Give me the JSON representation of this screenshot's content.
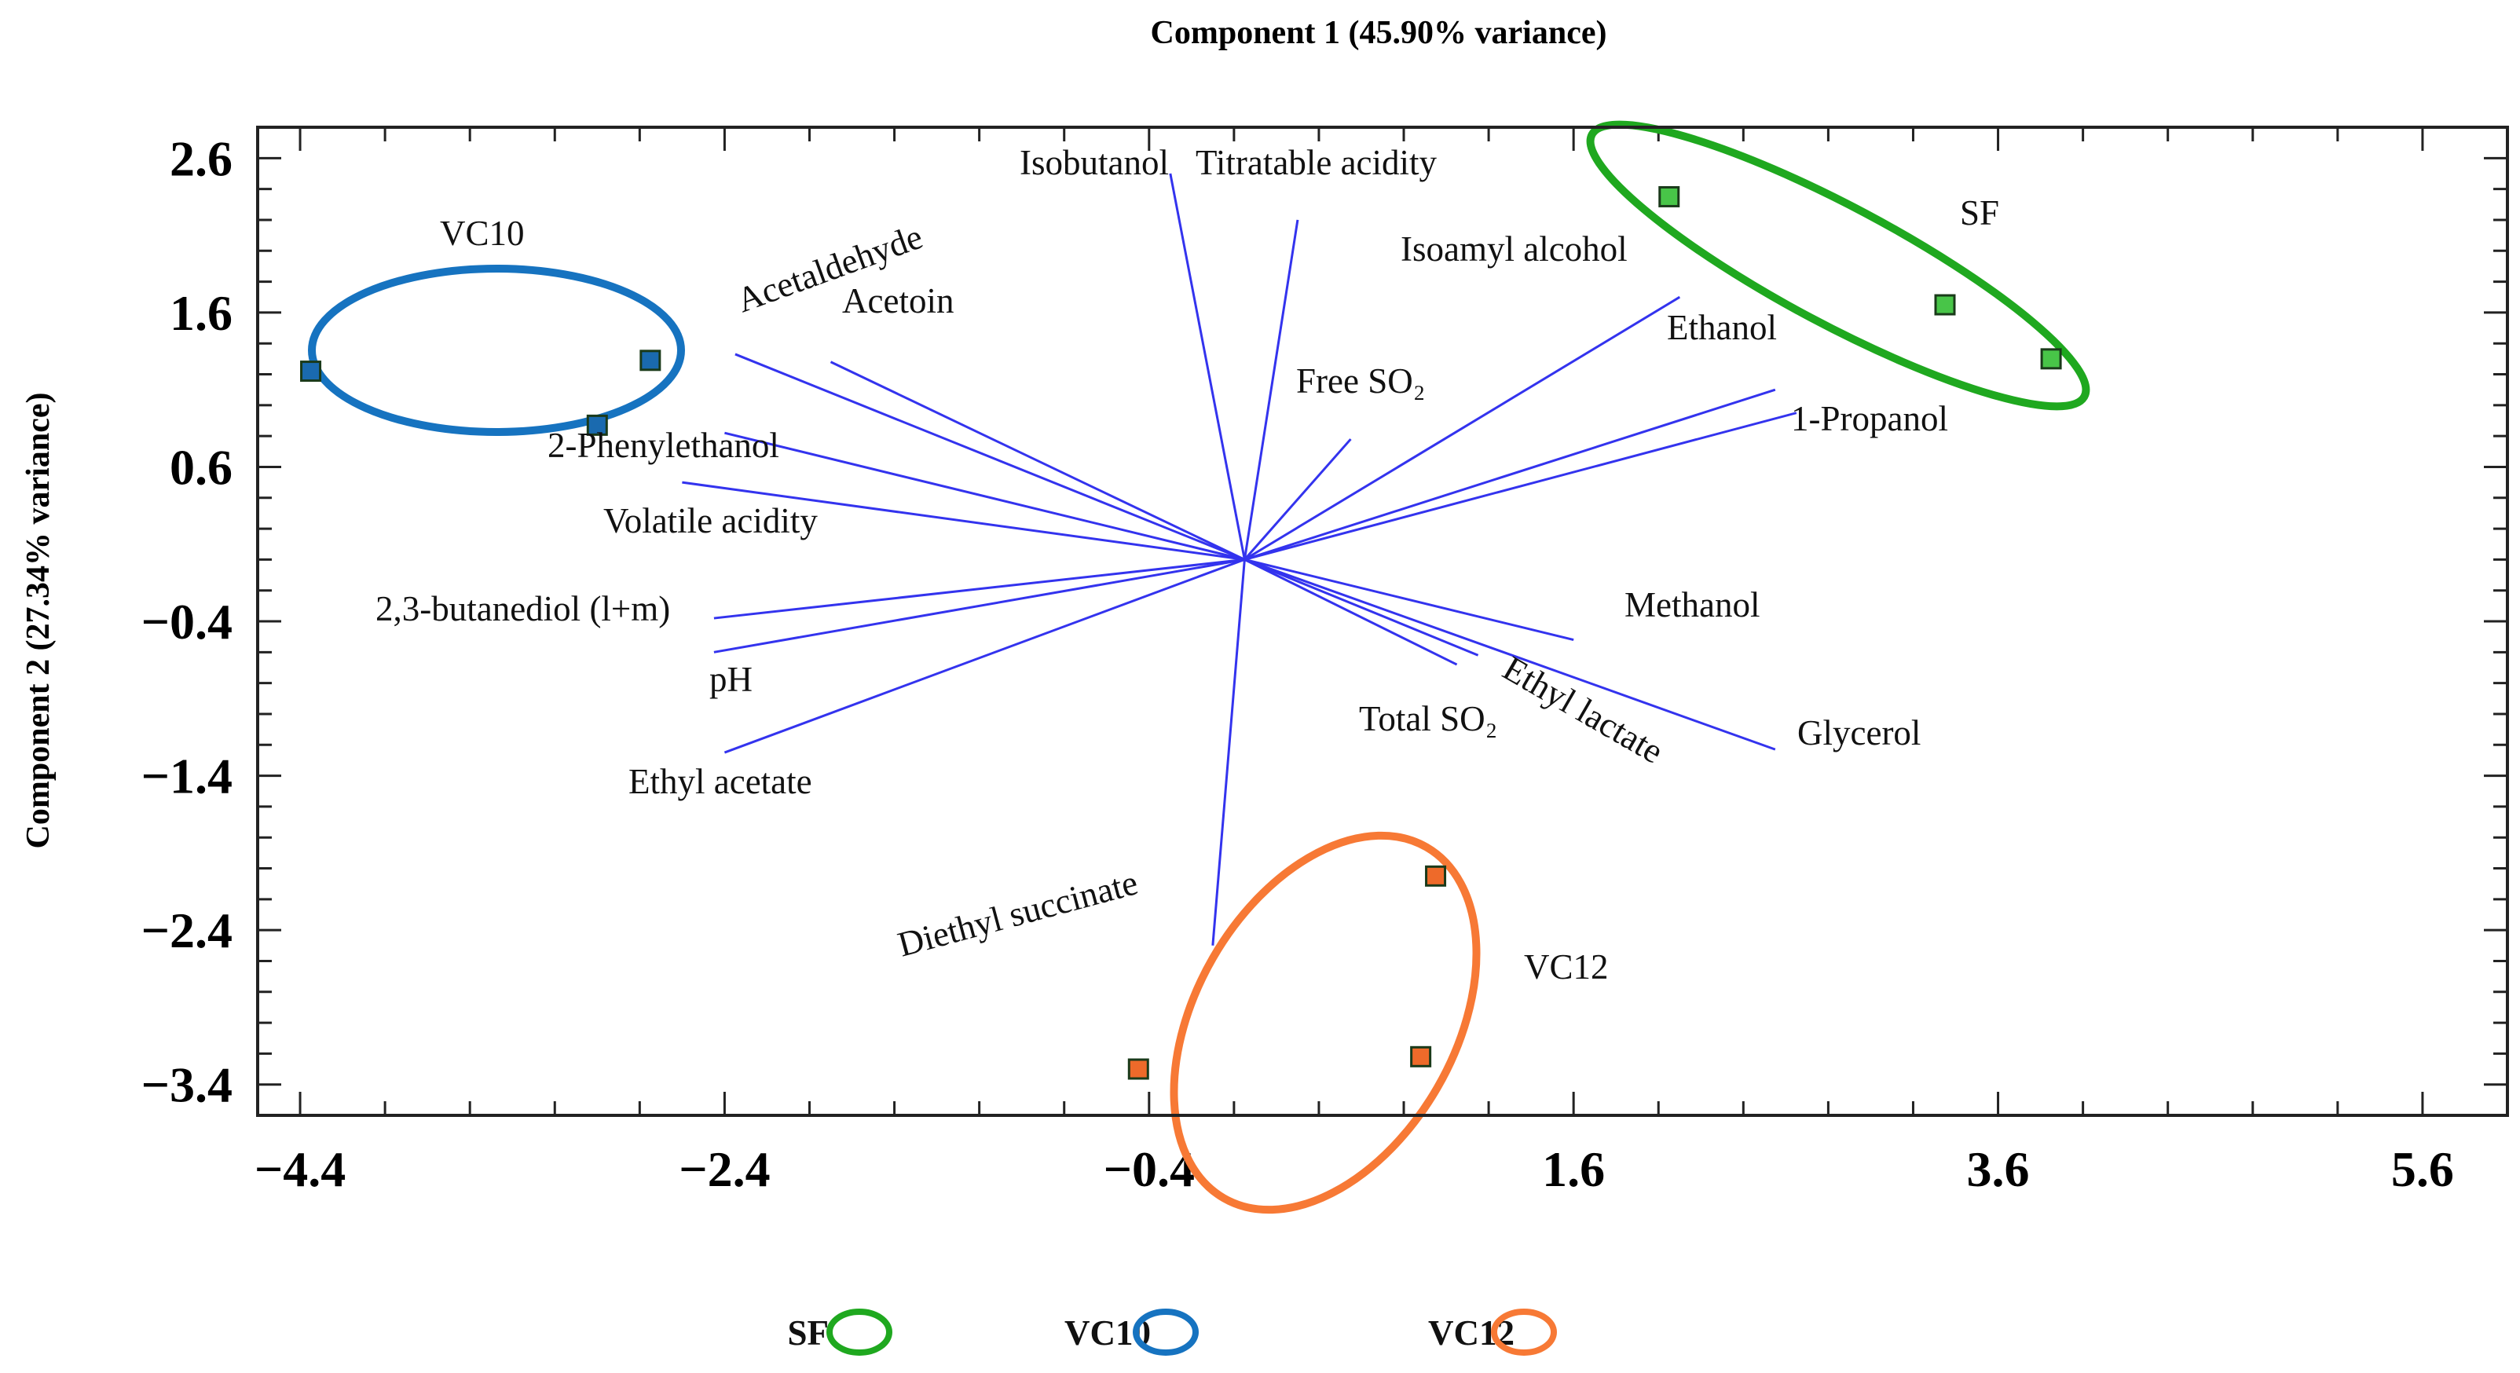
{
  "chart_data": {
    "type": "scatter",
    "subtype": "pca-biplot",
    "xlabel": "Component 1 (45.90% variance)",
    "ylabel": "Component 2 (27.34% variance)",
    "xlim": [
      -4.6,
      6.0
    ],
    "ylim": [
      -3.6,
      2.8
    ],
    "xticks": [
      -4.4,
      -2.4,
      -0.4,
      1.6,
      3.6,
      5.6
    ],
    "xtick_labels": [
      "−4.4",
      "−2.4",
      "−0.4",
      "1.6",
      "3.6",
      "5.6"
    ],
    "yticks": [
      2.6,
      1.6,
      0.6,
      -0.4,
      -1.4,
      -2.4,
      -3.4
    ],
    "ytick_labels": [
      "2.6",
      "1.6",
      "0.6",
      "−0.4",
      "−1.4",
      "−2.4",
      "−3.4"
    ],
    "loadings_origin": [
      0.05,
      0.0
    ],
    "loadings": [
      {
        "name": "Isobutanol",
        "x": -0.3,
        "y": 2.5
      },
      {
        "name": "Titratable acidity",
        "x": 0.3,
        "y": 2.2
      },
      {
        "name": "Isoamyl alcohol",
        "x": 2.1,
        "y": 1.7
      },
      {
        "name": "Ethanol",
        "x": 2.55,
        "y": 1.1
      },
      {
        "name": "1-Propanol",
        "x": 2.65,
        "y": 0.95
      },
      {
        "name": "Free SO₂",
        "x": 0.55,
        "y": 0.78
      },
      {
        "name": "Acetaldehyde",
        "x": -2.35,
        "y": 1.33
      },
      {
        "name": "Acetoin",
        "x": -1.9,
        "y": 1.28
      },
      {
        "name": "2-Phenylethanol",
        "x": -2.4,
        "y": 0.82
      },
      {
        "name": "Volatile acidity",
        "x": -2.6,
        "y": 0.5
      },
      {
        "name": "2,3-butanediol (l+m)",
        "x": -2.45,
        "y": -0.38
      },
      {
        "name": "pH",
        "x": -2.45,
        "y": -0.6
      },
      {
        "name": "Ethyl acetate",
        "x": -2.4,
        "y": -1.25
      },
      {
        "name": "Methanol",
        "x": 1.6,
        "y": -0.52
      },
      {
        "name": "Total SO₂",
        "x": 1.05,
        "y": -0.68
      },
      {
        "name": "Ethyl lactate",
        "x": 1.15,
        "y": -0.62
      },
      {
        "name": "Glycerol",
        "x": 2.55,
        "y": -1.23
      },
      {
        "name": "Diethyl succinate",
        "x": -0.1,
        "y": -2.5
      }
    ],
    "groups": [
      {
        "name": "SF",
        "color": "#1fa81f",
        "marker_color": "#48c548",
        "points": [
          [
            2.05,
            2.35
          ],
          [
            3.35,
            1.65
          ],
          [
            3.85,
            1.3
          ]
        ]
      },
      {
        "name": "VC10",
        "color": "#1673c0",
        "marker_color": "#1a6aaf",
        "points": [
          [
            -4.35,
            1.22
          ],
          [
            -2.75,
            1.29
          ],
          [
            -3.0,
            0.87
          ]
        ]
      },
      {
        "name": "VC12",
        "color": "#f77935",
        "marker_color": "#ee6a2a",
        "points": [
          [
            0.95,
            -2.05
          ],
          [
            0.88,
            -3.22
          ],
          [
            -0.45,
            -3.3
          ]
        ]
      }
    ],
    "legend": {
      "position": "bottom",
      "entries": [
        "SF",
        "VC10",
        "VC12"
      ]
    }
  }
}
